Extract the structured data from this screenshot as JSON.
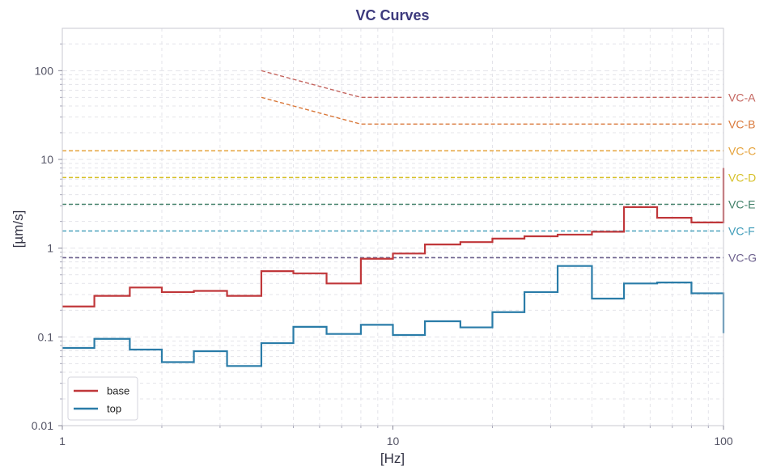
{
  "chart_data": {
    "type": "line",
    "title": "VC Curves",
    "xlabel": "[Hz]",
    "ylabel": "[µm/s]",
    "xscale": "log",
    "yscale": "log",
    "xlim": [
      1,
      100
    ],
    "ylim": [
      0.01,
      300
    ],
    "x_ticks": [
      1,
      10,
      100
    ],
    "x_tick_labels": [
      "1",
      "10",
      "100"
    ],
    "y_ticks": [
      0.01,
      0.1,
      1,
      10,
      100
    ],
    "y_tick_labels": [
      "0.01",
      "0.1",
      "1",
      "10",
      "100"
    ],
    "grid": true,
    "legend_position": "bottom-left",
    "colors": {
      "title": "#3d3a7d",
      "axis": "#c8c8d2",
      "grid": "#e4e4ea"
    },
    "series": [
      {
        "name": "base",
        "color": "#c0373a",
        "x": [
          1,
          1.25,
          1.6,
          2,
          2.5,
          3.15,
          4,
          5,
          6.3,
          8,
          10,
          12.5,
          16,
          20,
          25,
          31.5,
          40,
          50,
          63,
          80,
          100
        ],
        "y": [
          0.22,
          0.29,
          0.36,
          0.32,
          0.33,
          0.29,
          0.55,
          0.52,
          0.4,
          0.76,
          0.87,
          1.1,
          1.17,
          1.28,
          1.36,
          1.42,
          1.53,
          2.9,
          2.2,
          1.95,
          8.0
        ]
      },
      {
        "name": "top",
        "color": "#2a7ca8",
        "x": [
          1,
          1.25,
          1.6,
          2,
          2.5,
          3.15,
          4,
          5,
          6.3,
          8,
          10,
          12.5,
          16,
          20,
          25,
          31.5,
          40,
          50,
          63,
          80,
          100
        ],
        "y": [
          0.075,
          0.095,
          0.072,
          0.052,
          0.069,
          0.047,
          0.085,
          0.13,
          0.108,
          0.137,
          0.105,
          0.15,
          0.128,
          0.19,
          0.32,
          0.63,
          0.27,
          0.4,
          0.41,
          0.31,
          0.11
        ]
      }
    ],
    "vc_curves": [
      {
        "name": "VC-A",
        "color": "#c4655f",
        "x": [
          4,
          8,
          100
        ],
        "y": [
          100,
          50,
          50
        ]
      },
      {
        "name": "VC-B",
        "color": "#d9783a",
        "x": [
          4,
          8,
          100
        ],
        "y": [
          50,
          25,
          25
        ]
      },
      {
        "name": "VC-C",
        "color": "#e5a23a",
        "x": [
          1,
          100
        ],
        "y": [
          12.5,
          12.5
        ]
      },
      {
        "name": "VC-D",
        "color": "#d6c027",
        "x": [
          1,
          100
        ],
        "y": [
          6.25,
          6.25
        ]
      },
      {
        "name": "VC-E",
        "color": "#3f7f66",
        "x": [
          1,
          100
        ],
        "y": [
          3.12,
          3.12
        ]
      },
      {
        "name": "VC-F",
        "color": "#3d9bb8",
        "x": [
          1,
          100
        ],
        "y": [
          1.56,
          1.56
        ]
      },
      {
        "name": "VC-G",
        "color": "#6b5f8c",
        "x": [
          1,
          100
        ],
        "y": [
          0.78,
          0.78
        ]
      }
    ]
  }
}
